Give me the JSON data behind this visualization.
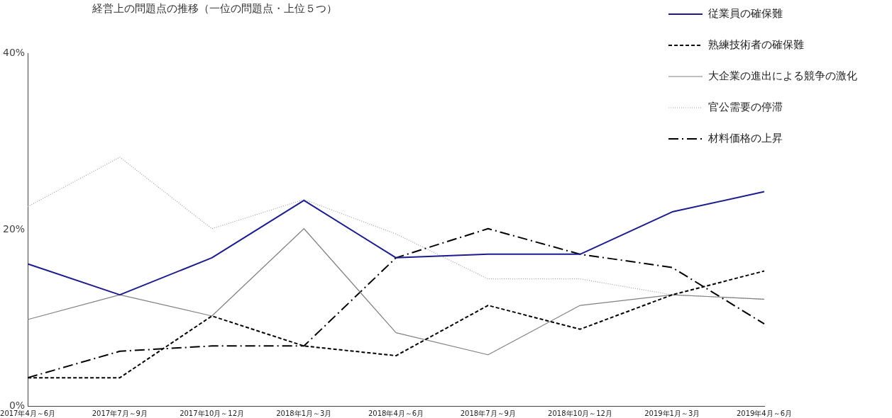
{
  "chart_data": {
    "type": "line",
    "title": "経営上の問題点の推移（一位の問題点・上位５つ）",
    "categories": [
      "2017年4月～6月",
      "2017年7月～9月",
      "2017年10月～12月",
      "2018年1月～3月",
      "2018年4月～6月",
      "2018年7月～9月",
      "2018年10月～12月",
      "2019年1月～3月",
      "2019年4月～6月"
    ],
    "ylim": [
      0,
      40
    ],
    "yticks": [
      {
        "value": 0,
        "label": "0%"
      },
      {
        "value": 20,
        "label": "20%"
      },
      {
        "value": 40,
        "label": "40%"
      }
    ],
    "grid": false,
    "legend": "top right",
    "marker": "none",
    "series": [
      {
        "name": "従業員の確保難",
        "color": "#1c1c8c",
        "line_style": "solid",
        "values": [
          16.1,
          12.6,
          16.8,
          23.3,
          16.8,
          17.2,
          17.2,
          22.0,
          24.3
        ]
      },
      {
        "name": "熟練技術者の確保難",
        "color": "#000000",
        "line_style": "dashed",
        "values": [
          3.2,
          3.2,
          10.2,
          6.8,
          5.7,
          11.4,
          8.7,
          12.6,
          15.3
        ]
      },
      {
        "name": "大企業の進出による競争の激化",
        "color": "#808080",
        "line_style": "solid",
        "values": [
          9.8,
          12.6,
          10.2,
          20.1,
          8.3,
          5.8,
          11.4,
          12.6,
          12.1
        ]
      },
      {
        "name": "官公需要の停滞",
        "color": "#a0a0a0",
        "line_style": "dotted",
        "values": [
          22.6,
          28.2,
          20.1,
          23.4,
          19.5,
          14.4,
          14.4,
          12.6,
          12.1
        ]
      },
      {
        "name": "材料価格の上昇",
        "color": "#000000",
        "line_style": "dashdot",
        "values": [
          3.2,
          6.2,
          6.8,
          6.8,
          16.8,
          20.1,
          17.2,
          15.7,
          9.3
        ]
      }
    ]
  }
}
